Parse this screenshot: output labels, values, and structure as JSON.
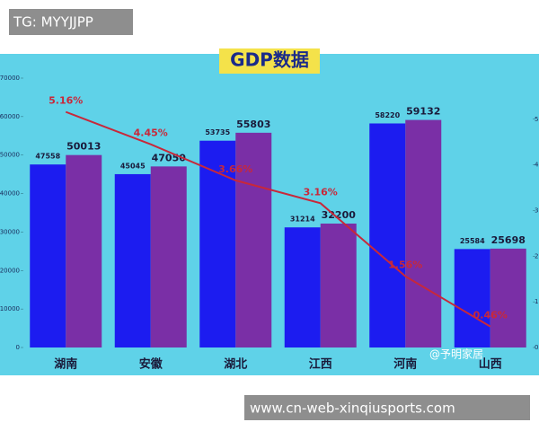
{
  "tag": "TG: MYYJJPP",
  "url": "www.cn-web-xinqiusports.com",
  "chart_data": {
    "type": "bar",
    "title": "GDP数据",
    "categories": [
      "湖南",
      "安徽",
      "湖北",
      "江西",
      "河南",
      "山西"
    ],
    "series": [
      {
        "color": "#1c1cf0",
        "values": [
          47558,
          45045,
          53735,
          31214,
          58220,
          25584
        ]
      },
      {
        "color": "#7a2fa6",
        "values": [
          50013,
          47050,
          55803,
          32200,
          59132,
          25698
        ]
      },
      {
        "type": "line",
        "axis": "y2",
        "color": "#c8283a",
        "values": [
          5.16,
          4.45,
          3.66,
          3.16,
          1.56,
          0.46
        ],
        "value_labels": [
          "5.16%",
          "4.45%",
          "3.66%",
          "3.16%",
          "1.56%",
          "0.46%"
        ]
      }
    ],
    "ylim": [
      0,
      70000
    ],
    "yticks": [
      0,
      10000,
      20000,
      30000,
      40000,
      50000,
      60000,
      70000
    ],
    "y2lim": [
      0,
      5.9
    ],
    "y2ticks": [
      0,
      1,
      2,
      3,
      4,
      5
    ],
    "annotation": "@予明家居"
  }
}
